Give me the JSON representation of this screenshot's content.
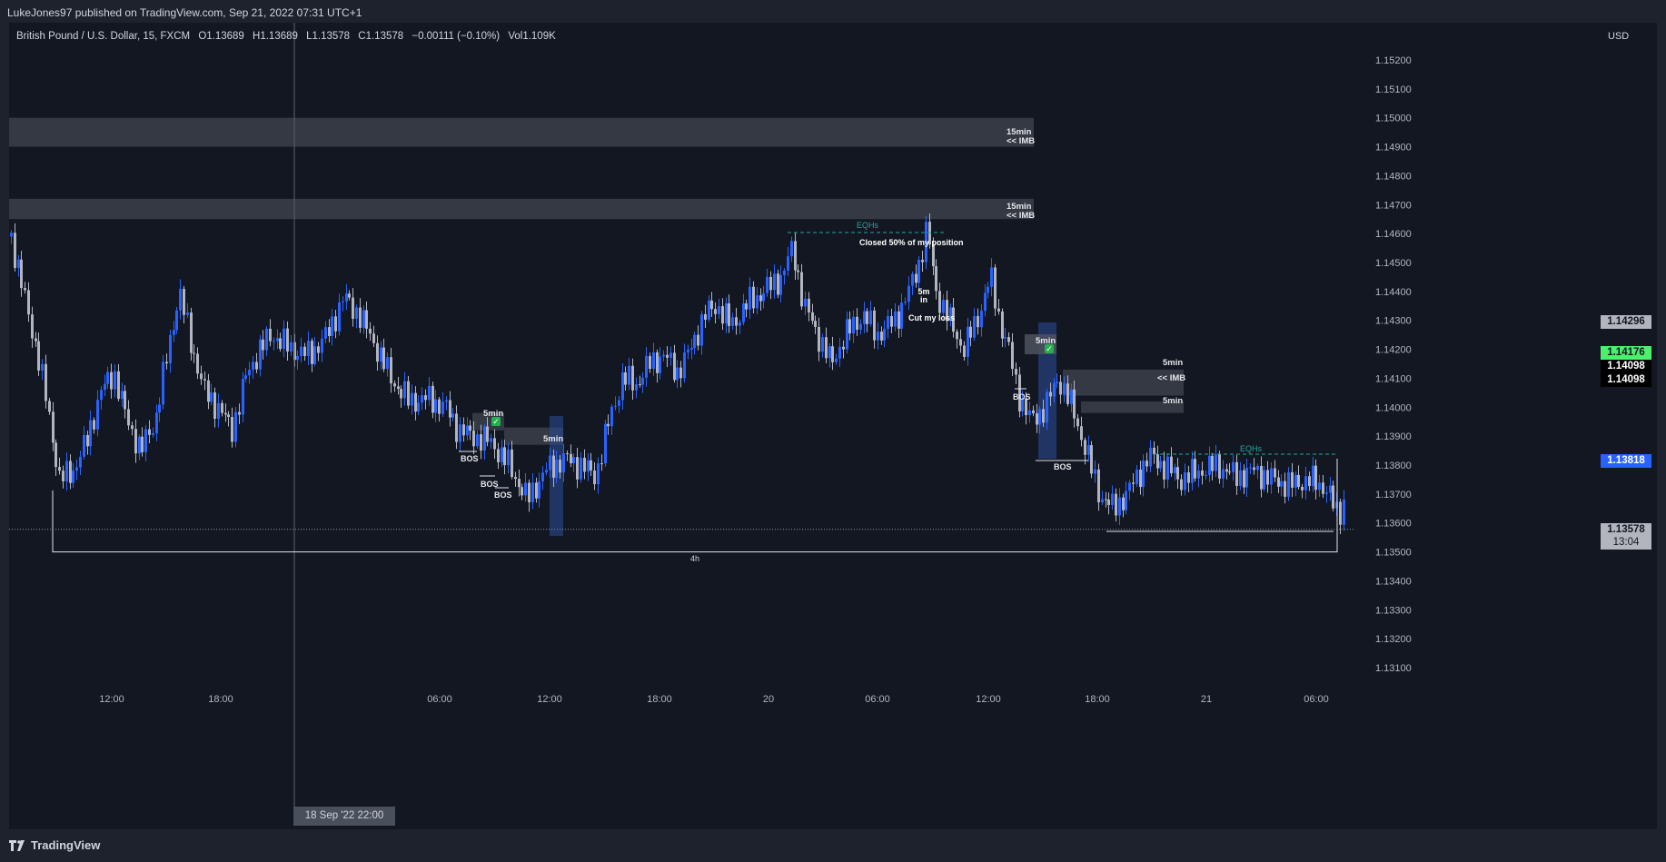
{
  "header": {
    "publish_line": "LukeJones97 published on TradingView.com, Sep 21, 2022 07:31 UTC+1"
  },
  "symbol": {
    "name": "British Pound / U.S. Dollar, 15, FXCM",
    "open": "O1.13689",
    "high": "H1.13689",
    "low": "L1.13578",
    "close": "C1.13578",
    "change": "−0.00111 (−0.10%)",
    "volume": "Vol1.109K"
  },
  "price_axis": {
    "currency": "USD",
    "ticks": [
      "1.15200",
      "1.15100",
      "1.15000",
      "1.14900",
      "1.14800",
      "1.14700",
      "1.14600",
      "1.14500",
      "1.14400",
      "1.14300",
      "1.14200",
      "1.14100",
      "1.14000",
      "1.13900",
      "1.13800",
      "1.13700",
      "1.13600",
      "1.13500",
      "1.13400",
      "1.13300",
      "1.13200",
      "1.13100"
    ],
    "tick_values": [
      1.152,
      1.151,
      1.15,
      1.149,
      1.148,
      1.147,
      1.146,
      1.145,
      1.144,
      1.143,
      1.142,
      1.141,
      1.14,
      1.139,
      1.138,
      1.137,
      1.136,
      1.135,
      1.134,
      1.133,
      1.132,
      1.131
    ],
    "tags": [
      {
        "label": "1.14296",
        "value": 1.14296,
        "bg": "#b2b5be",
        "fg": "#131722"
      },
      {
        "label": "1.14176",
        "value": 1.14176,
        "bg": "#4cf06a",
        "fg": "#131722"
      },
      {
        "label": "1.14098",
        "value": 1.14098,
        "bg": "#000000",
        "fg": "#ffffff"
      },
      {
        "label": "1.14098",
        "value": 1.14098,
        "bg": "#000000",
        "fg": "#ffffff"
      },
      {
        "label": "1.13818",
        "value": 1.13818,
        "bg": "#2962ff",
        "fg": "#ffffff"
      },
      {
        "label": "1.13578",
        "value": 1.13578,
        "bg": "#b2b5be",
        "fg": "#131722"
      }
    ],
    "countdown": "13:04"
  },
  "time_axis": {
    "labels": [
      "12:00",
      "18:00",
      "06:00",
      "12:00",
      "18:00",
      "20",
      "06:00",
      "12:00",
      "18:00",
      "21",
      "06:00"
    ],
    "crosshair_label": "18 Sep '22   22:00"
  },
  "annotations": {
    "zones": [
      {
        "line1": "15min",
        "line2": "<< IMB",
        "top": 1.15,
        "bottom": 1.149
      },
      {
        "line1": "15min",
        "line2": "<< IMB",
        "top": 1.1472,
        "bottom": 1.1465
      },
      {
        "line1": "5min",
        "line2": "",
        "top": 1.1398,
        "bottom": 1.1392
      },
      {
        "line1": "5min",
        "line2": "",
        "top": 1.1393,
        "bottom": 1.1387
      },
      {
        "line1": "5min",
        "line2": "<< IMB",
        "top": 1.1413,
        "bottom": 1.1404
      },
      {
        "line1": "5min",
        "line2": "",
        "top": 1.1402,
        "bottom": 1.1398
      }
    ],
    "bos": [
      "BOS",
      "BOS",
      "BOS",
      "BOS",
      "BOS"
    ],
    "eqhs": [
      "EQHs",
      "EQHs"
    ],
    "notes": {
      "closed": "Closed 50% of my position",
      "entry": "5m in",
      "cut": "Cut my loss",
      "entry2": "5min"
    },
    "range_label": "4h",
    "range_level": 1.135
  },
  "chart_data": {
    "type": "candlestick",
    "symbol": "GBPUSD",
    "interval": "15",
    "ylim": [
      1.1305,
      1.153
    ],
    "last_price": 1.13578
  },
  "colors": {
    "up": "#2962ff",
    "down": "#b2b5be",
    "zone": "#3b3f4a",
    "background": "#131722"
  },
  "footer": {
    "brand": "TradingView"
  }
}
